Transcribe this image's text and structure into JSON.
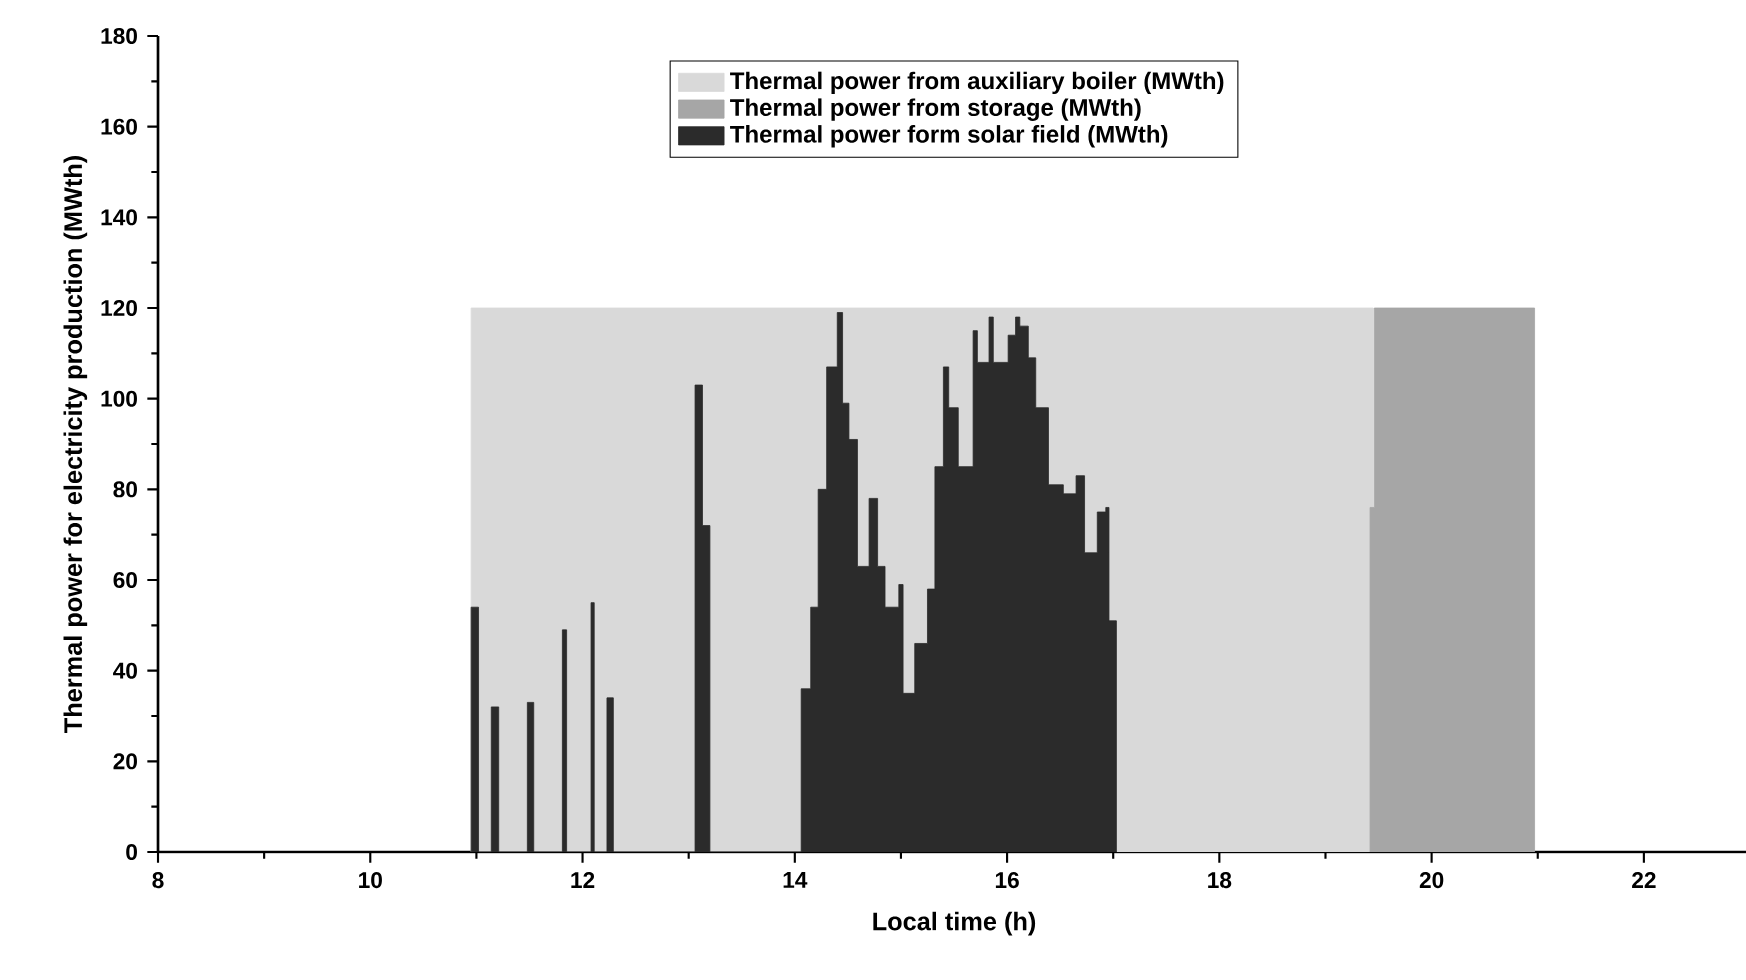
{
  "chart_data": {
    "type": "area",
    "xlabel": "Local time (h)",
    "ylabel": "Thermal power for electricity production (MWth)",
    "xlim": [
      8,
      23
    ],
    "xticks": [
      8,
      10,
      12,
      14,
      16,
      18,
      20,
      22
    ],
    "ylim": [
      0,
      180
    ],
    "yticks": [
      0,
      20,
      40,
      60,
      80,
      100,
      120,
      140,
      160,
      180
    ],
    "grid": false,
    "legend": "top",
    "series": [
      {
        "name": "Thermal power from auxiliary boiler (MWth)",
        "color": "#d9d9d9",
        "x": [
          10.95,
          10.95,
          19.45,
          19.45
        ],
        "values": [
          0,
          120,
          120,
          0
        ]
      },
      {
        "name": "Thermal power from storage (MWth)",
        "color": "#a6a6a6",
        "x": [
          19.42,
          19.42,
          19.46,
          19.46,
          20.97,
          20.97
        ],
        "values": [
          0,
          76,
          76,
          120,
          120,
          0
        ]
      },
      {
        "name": "Thermal power form solar field (MWth)",
        "color": "#2b2b2b",
        "x": [
          10.95,
          10.95,
          11.02,
          11.02,
          11.14,
          11.14,
          11.21,
          11.21,
          11.48,
          11.48,
          11.54,
          11.54,
          11.81,
          11.81,
          11.85,
          11.85,
          12.08,
          12.08,
          12.11,
          12.11,
          12.23,
          12.23,
          12.29,
          12.29,
          13.06,
          13.06,
          13.13,
          13.13,
          13.2,
          13.2,
          14.06,
          14.06,
          14.15,
          14.15,
          14.22,
          14.22,
          14.3,
          14.3,
          14.4,
          14.4,
          14.45,
          14.45,
          14.51,
          14.51,
          14.59,
          14.59,
          14.7,
          14.7,
          14.78,
          14.78,
          14.85,
          14.85,
          14.98,
          14.98,
          15.02,
          15.02,
          15.13,
          15.13,
          15.25,
          15.25,
          15.32,
          15.32,
          15.4,
          15.4,
          15.45,
          15.45,
          15.54,
          15.54,
          15.68,
          15.68,
          15.72,
          15.72,
          15.83,
          15.83,
          15.87,
          15.87,
          16.01,
          16.01,
          16.08,
          16.08,
          16.12,
          16.12,
          16.2,
          16.2,
          16.27,
          16.27,
          16.39,
          16.39,
          16.53,
          16.53,
          16.65,
          16.65,
          16.73,
          16.73,
          16.85,
          16.85,
          16.93,
          16.93,
          16.96,
          16.96,
          17.03,
          17.03
        ],
        "values": [
          0,
          54,
          54,
          0,
          0,
          32,
          32,
          0,
          0,
          33,
          33,
          0,
          0,
          49,
          49,
          0,
          0,
          55,
          55,
          0,
          0,
          34,
          34,
          0,
          0,
          103,
          103,
          72,
          72,
          0,
          0,
          36,
          36,
          54,
          54,
          80,
          80,
          107,
          107,
          119,
          119,
          99,
          99,
          91,
          91,
          63,
          63,
          78,
          78,
          63,
          63,
          54,
          54,
          59,
          59,
          35,
          35,
          46,
          46,
          58,
          58,
          85,
          85,
          107,
          107,
          98,
          98,
          85,
          85,
          115,
          115,
          108,
          108,
          118,
          118,
          108,
          108,
          114,
          114,
          118,
          118,
          116,
          116,
          109,
          109,
          98,
          98,
          81,
          81,
          79,
          79,
          83,
          83,
          66,
          66,
          75,
          75,
          76,
          76,
          51,
          51,
          0
        ]
      }
    ]
  }
}
